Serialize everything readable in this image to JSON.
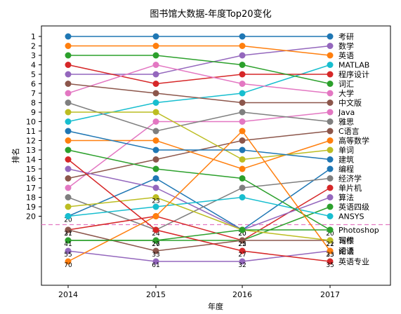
{
  "chart_data": {
    "type": "line",
    "title": "图书馆大数据-年度Top20变化",
    "xlabel": "年度",
    "ylabel": "排名",
    "x": [
      "2014",
      "2015",
      "2016",
      "2017"
    ],
    "y_tick_labels": [
      1,
      2,
      3,
      4,
      5,
      6,
      7,
      8,
      9,
      10,
      11,
      12,
      13,
      14,
      15,
      16,
      17,
      18,
      19,
      20
    ],
    "cutoff_line": {
      "rank": 20.5,
      "style": "dashed",
      "color": "#e377c2"
    },
    "legend": "right-side labels at 2017",
    "series": [
      {
        "name": "考研",
        "color": "#1f77b4",
        "ranks": [
          1,
          1,
          1,
          1
        ],
        "labels": [
          null,
          null,
          null,
          null
        ]
      },
      {
        "name": "数学",
        "color": "#9467bd",
        "ranks": [
          5,
          5,
          3,
          2
        ],
        "labels": [
          null,
          null,
          null,
          null
        ]
      },
      {
        "name": "英语",
        "color": "#ff7f0e",
        "ranks": [
          2,
          2,
          2,
          3
        ],
        "labels": [
          null,
          null,
          null,
          null
        ]
      },
      {
        "name": "MATLAB",
        "color": "#17becf",
        "ranks": [
          10,
          8,
          7,
          4
        ],
        "labels": [
          null,
          null,
          null,
          null
        ]
      },
      {
        "name": "程序设计",
        "color": "#d62728",
        "ranks": [
          4,
          6,
          5,
          5
        ],
        "labels": [
          null,
          null,
          null,
          null
        ]
      },
      {
        "name": "词汇",
        "color": "#2ca02c",
        "ranks": [
          3,
          3,
          4,
          6
        ],
        "labels": [
          null,
          null,
          null,
          null
        ]
      },
      {
        "name": "大学",
        "color": "#e377c2",
        "ranks": [
          7,
          4,
          6,
          7
        ],
        "labels": [
          null,
          null,
          null,
          null
        ]
      },
      {
        "name": "中文版",
        "color": "#8c564b",
        "ranks": [
          6,
          7,
          8,
          8
        ],
        "labels": [
          null,
          null,
          null,
          null
        ]
      },
      {
        "name": "Java",
        "color": "#e377c2",
        "ranks": [
          17,
          10,
          10,
          9
        ],
        "labels": [
          null,
          null,
          null,
          null
        ]
      },
      {
        "name": "雅思",
        "color": "#7f7f7f",
        "ranks": [
          8,
          11,
          9,
          10
        ],
        "labels": [
          null,
          null,
          null,
          null
        ]
      },
      {
        "name": "C语言",
        "color": "#8c564b",
        "ranks": [
          16,
          14,
          12,
          11
        ],
        "labels": [
          null,
          null,
          null,
          null
        ]
      },
      {
        "name": "高等数学",
        "color": "#ff7f0e",
        "ranks": [
          12,
          12,
          15,
          12
        ],
        "labels": [
          null,
          null,
          null,
          null
        ]
      },
      {
        "name": "单词",
        "color": "#bcbd22",
        "ranks": [
          9,
          9,
          14,
          13
        ],
        "labels": [
          null,
          null,
          null,
          null
        ]
      },
      {
        "name": "建筑",
        "color": "#1f77b4",
        "ranks": [
          11,
          13,
          13,
          14
        ],
        "labels": [
          null,
          null,
          null,
          null
        ]
      },
      {
        "name": "编程",
        "color": "#1f77b4",
        "ranks": [
          20,
          16,
          21,
          15
        ],
        "labels": [
          "20",
          null,
          "20",
          null
        ]
      },
      {
        "name": "经济学",
        "color": "#7f7f7f",
        "ranks": [
          18,
          21,
          17,
          16
        ],
        "labels": [
          null,
          "24",
          null,
          null
        ]
      },
      {
        "name": "单片机",
        "color": "#d62728",
        "ranks": [
          21,
          20,
          22,
          17
        ],
        "labels": [
          "21",
          null,
          "22",
          null
        ]
      },
      {
        "name": "算法",
        "color": "#9467bd",
        "ranks": [
          15,
          17,
          21,
          18
        ],
        "labels": [
          null,
          null,
          "20",
          null
        ]
      },
      {
        "name": "英语四级",
        "color": "#2ca02c",
        "ranks": [
          22,
          22,
          22,
          19
        ],
        "labels": [
          null,
          "26",
          null,
          null
        ]
      },
      {
        "name": "ANSYS",
        "color": "#17becf",
        "ranks": [
          20,
          19,
          18,
          20
        ],
        "labels": [
          null,
          null,
          null,
          null
        ]
      },
      {
        "name": "Photoshop",
        "color": "#2ca02c",
        "ranks": [
          13,
          15,
          16,
          21
        ],
        "labels": [
          null,
          null,
          null,
          "20"
        ]
      },
      {
        "name": "词根",
        "color": "#8c564b",
        "ranks": [
          21,
          23,
          22,
          22
        ],
        "labels": [
          "37",
          "33",
          "25",
          "21"
        ]
      },
      {
        "name": "写作",
        "color": "#bcbd22",
        "ranks": [
          19,
          18,
          21,
          22
        ],
        "labels": [
          null,
          "23",
          null,
          "22"
        ]
      },
      {
        "name": "阅读",
        "color": "#9467bd",
        "ranks": [
          23,
          24,
          24,
          23
        ],
        "labels": [
          "55",
          "61",
          "32",
          "25"
        ]
      },
      {
        "name": "论语",
        "color": "#ff7f0e",
        "ranks": [
          24,
          20,
          11,
          23
        ],
        "labels": [
          "70",
          null,
          null,
          "33"
        ]
      },
      {
        "name": "英语专业",
        "color": "#d62728",
        "ranks": [
          14,
          21,
          23,
          24
        ],
        "labels": [
          null,
          null,
          "27",
          "35"
        ]
      },
      {
        "name": "",
        "color": "#2ca02c",
        "ranks": [
          22,
          22,
          21,
          21
        ],
        "labels": [
          "41",
          "27",
          null,
          null
        ]
      }
    ]
  }
}
